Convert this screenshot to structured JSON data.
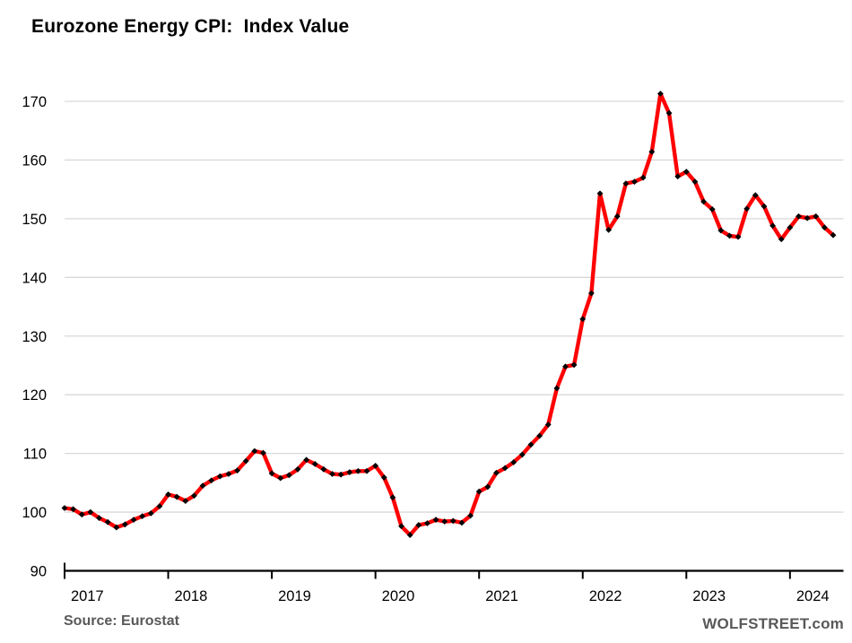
{
  "title": "Eurozone Energy CPI:  Index Value",
  "footer": {
    "source": "Source: Eurostat",
    "branding": "WOLFSTREET.com"
  },
  "colors": {
    "line": "#fe0000",
    "marker": "#000000",
    "gridline": "#d9d9d9",
    "axis": "#000000",
    "tick_text": "#000000",
    "muted_text": "#595959",
    "background": "#ffffff"
  },
  "chart_data": {
    "type": "line",
    "title": "Eurozone Energy CPI:  Index Value",
    "xlabel": "",
    "ylabel": "",
    "legend": "none",
    "grid": "horizontal",
    "ylim": [
      90,
      175
    ],
    "y_ticks": [
      90,
      100,
      110,
      120,
      130,
      140,
      150,
      160,
      170
    ],
    "x_tick_labels": [
      "2017",
      "2018",
      "2019",
      "2020",
      "2021",
      "2022",
      "2023",
      "2024"
    ],
    "frequency": "monthly",
    "start_month": "2017-01",
    "end_month": "2024-06",
    "series": [
      {
        "name": "Eurozone Energy CPI index value",
        "marker": "diamond",
        "values": [
          100.7,
          100.5,
          99.6,
          100.0,
          99.0,
          98.3,
          97.4,
          97.9,
          98.7,
          99.3,
          99.8,
          101.0,
          103.0,
          102.6,
          101.9,
          102.8,
          104.5,
          105.4,
          106.1,
          106.5,
          107.1,
          108.7,
          110.4,
          110.1,
          106.6,
          105.8,
          106.3,
          107.3,
          108.9,
          108.2,
          107.3,
          106.5,
          106.4,
          106.8,
          107.0,
          107.0,
          107.9,
          105.9,
          102.5,
          97.6,
          96.1,
          97.8,
          98.1,
          98.7,
          98.4,
          98.5,
          98.2,
          99.4,
          103.5,
          104.3,
          106.7,
          107.5,
          108.5,
          109.8,
          111.5,
          113.0,
          114.9,
          121.1,
          124.8,
          125.1,
          132.9,
          137.3,
          154.3,
          148.1,
          150.4,
          156.0,
          156.3,
          157.0,
          161.4,
          171.3,
          168.0,
          157.2,
          158.0,
          156.3,
          152.9,
          151.6,
          148.0,
          147.1,
          146.9,
          151.7,
          154.0,
          152.1,
          148.8,
          146.5,
          148.5,
          150.4,
          150.1,
          150.4,
          148.5,
          147.2
        ]
      }
    ]
  }
}
